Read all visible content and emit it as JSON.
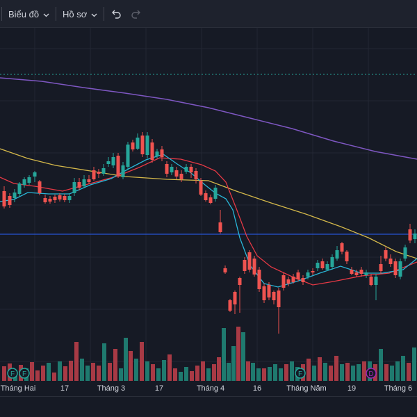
{
  "toolbar": {
    "chart_label": "Biểu đồ",
    "profile_label": "Hồ sơ",
    "undo_icon": "undo-icon",
    "redo_icon": "redo-icon"
  },
  "colors": {
    "background": "#161a25",
    "grid": "#232733",
    "candle_up": "#26a69a",
    "candle_down": "#ef5350",
    "volume_up": "#1f7a6f",
    "volume_down": "#a83a45",
    "ma_purple": "#7e57c2",
    "ma_yellow": "#d4b84a",
    "ma_red": "#e53945",
    "ma_cyan": "#29b6d8",
    "horizontal_level": "#2962ff",
    "dotted_level": "#26a69a"
  },
  "chart_data": {
    "type": "candlestick",
    "x_ticks": [
      "Tháng Hai",
      "17",
      "Tháng 3",
      "17",
      "Tháng 4",
      "16",
      "Tháng Năm",
      "19",
      "Tháng 6"
    ],
    "event_markers": [
      "F",
      "F",
      "F",
      "D"
    ],
    "grid": true
  }
}
